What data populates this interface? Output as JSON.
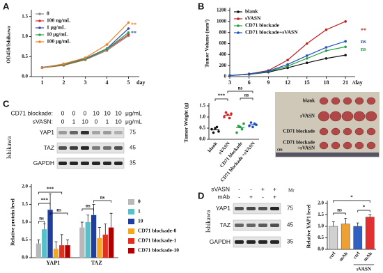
{
  "panel_labels": [
    "A",
    "B",
    "C",
    "D"
  ],
  "chart_data": [
    {
      "type": "line",
      "ylabel": "OD450/Ishikawa",
      "xlabel": "day",
      "x": [
        1,
        2,
        3,
        4,
        5
      ],
      "xlim": [
        0.5,
        5.5
      ],
      "xticks": [
        1,
        2,
        3,
        4,
        5
      ],
      "ylim": [
        0,
        1.6
      ],
      "yticks": [
        {
          "value": 0,
          "label": "0.0"
        },
        0.5,
        {
          "value": 1,
          "label": "1.0"
        },
        1.5
      ],
      "legend": "upper left",
      "series": [
        {
          "name": "0",
          "color": "#888888",
          "values": [
            0.22,
            0.28,
            0.42,
            0.65,
            1.02
          ]
        },
        {
          "name": "100 ng/mL",
          "color": "#d03030",
          "values": [
            0.22,
            0.29,
            0.43,
            0.68,
            1.05
          ]
        },
        {
          "name": "1 μg/mL",
          "color": "#3050b0",
          "values": [
            0.23,
            0.31,
            0.45,
            0.7,
            1.2
          ]
        },
        {
          "name": "10 μg/mL",
          "color": "#30a050",
          "values": [
            0.22,
            0.3,
            0.44,
            0.69,
            1.1
          ]
        },
        {
          "name": "100 μg/mL",
          "color": "#f08020",
          "values": [
            0.22,
            0.32,
            0.47,
            0.8,
            1.35
          ]
        }
      ],
      "annotations": [
        {
          "text": "**",
          "color": "#f08020"
        },
        {
          "text": "**",
          "color": "#3050b0"
        }
      ]
    },
    {
      "type": "line",
      "ylabel": "Tumor Volume (mm³)",
      "xlabel": "/day",
      "x": [
        3,
        6,
        9,
        12,
        15,
        18,
        21
      ],
      "xlim": [
        3,
        22.5
      ],
      "xticks": [
        3,
        6,
        9,
        12,
        15,
        18,
        21
      ],
      "ylim": [
        0,
        1200
      ],
      "yticks": [
        0,
        200,
        400,
        600,
        800,
        1000,
        1200
      ],
      "legend": "upper left",
      "series": [
        {
          "name": "blank",
          "color": "#111111",
          "values": [
            20,
            40,
            80,
            160,
            250,
            330,
            390
          ]
        },
        {
          "name": "sVASN",
          "color": "#c02020",
          "values": [
            20,
            50,
            110,
            300,
            600,
            850,
            1000
          ]
        },
        {
          "name": "CD71 blockade",
          "color": "#20a040",
          "values": [
            20,
            40,
            90,
            190,
            330,
            470,
            540
          ]
        },
        {
          "name": "CD71 blockade+sVASN",
          "color": "#2050c0",
          "values": [
            20,
            45,
            100,
            220,
            380,
            530,
            640
          ]
        }
      ],
      "annotations": [
        {
          "text": "**",
          "color": "#c02020"
        },
        {
          "text": "ns",
          "color": "#2050c0"
        },
        {
          "text": "ns",
          "color": "#20a040"
        }
      ]
    },
    {
      "type": "strip",
      "ylabel": "Tumor Weight (g)",
      "categories": [
        "blank",
        "sVASN",
        "CD71 blockade",
        "CD71 blockade +sVASN"
      ],
      "colors": [
        "#111111",
        "#d02020",
        "#20a040",
        "#2050c0"
      ],
      "values": [
        0.43,
        1.08,
        0.52,
        0.65
      ],
      "points": [
        [
          0.45,
          0.3,
          0.5,
          0.55,
          0.35
        ],
        [
          1.0,
          1.2,
          1.1,
          0.95,
          1.15
        ],
        [
          0.3,
          0.6,
          0.55,
          0.45,
          0.7
        ],
        [
          0.6,
          0.75,
          0.55,
          0.7,
          0.65
        ]
      ],
      "ylim": [
        0,
        1.5
      ],
      "yticks": [
        {
          "value": 0,
          "label": "0.0"
        },
        0.5,
        {
          "value": 1,
          "label": "1.0"
        },
        1.5
      ],
      "annotations": [
        {
          "text": "***"
        },
        {
          "text": "ns"
        },
        {
          "text": "ns"
        }
      ]
    },
    {
      "type": "bar",
      "ylabel": "Relative protein level",
      "categories": [
        "YAP1",
        "TAZ"
      ],
      "ylim": [
        0,
        2
      ],
      "yticks": [
        {
          "value": 0,
          "label": "0.0"
        },
        0.5,
        {
          "value": 1,
          "label": "1.0"
        },
        1.5,
        {
          "value": 2,
          "label": "2.0"
        }
      ],
      "legend": "right",
      "series": [
        {
          "name": "0",
          "color": "#b8b8b8",
          "values": [
            0.4,
            0.85
          ],
          "errors": [
            0.1,
            0.15
          ]
        },
        {
          "name": "1",
          "color": "#58c0c8",
          "values": [
            0.8,
            1.0
          ],
          "errors": [
            0.15,
            0.2
          ]
        },
        {
          "name": "10",
          "color": "#1f3fa0",
          "values": [
            1.35,
            1.2
          ],
          "errors": [
            0.45,
            0.3
          ]
        },
        {
          "name": "CD71 blockade-0",
          "color": "#f5a623",
          "values": [
            0.25,
            0.55
          ],
          "errors": [
            0.2,
            0.3
          ]
        },
        {
          "name": "CD71 blockade-1",
          "color": "#e03020",
          "values": [
            0.35,
            0.65
          ],
          "errors": [
            0.3,
            0.3
          ]
        },
        {
          "name": "CD71 blockade-10",
          "color": "#b00000",
          "values": [
            0.35,
            0.85
          ],
          "errors": [
            0.15,
            0.4
          ]
        }
      ],
      "annotations": [
        {
          "text": "ns"
        },
        {
          "text": "***"
        },
        {
          "text": "***"
        },
        {
          "text": "ns"
        },
        {
          "text": "ns"
        },
        {
          "text": "ns"
        }
      ]
    },
    {
      "type": "colbar",
      "ylabel": "Relative YAP1 level",
      "categories": [
        "ctrl",
        "mAb",
        "ctrl",
        "mAb"
      ],
      "group_label": "sVASN",
      "colors": [
        "#d0d0d0",
        "#f0a030",
        "#3060c0",
        "#e03030"
      ],
      "values": [
        1.0,
        1.1,
        1.0,
        1.4
      ],
      "errors": [
        0.2,
        0.25,
        0.15,
        0.1
      ],
      "ylim": [
        0,
        2
      ],
      "yticks": [
        {
          "value": 0,
          "label": "0.0"
        },
        0.5,
        {
          "value": 1,
          "label": "1.0"
        },
        1.5,
        {
          "value": 2,
          "label": "2.0"
        }
      ],
      "annotations": [
        {
          "text": "ns"
        },
        {
          "text": "*"
        },
        {
          "text": "*"
        }
      ]
    }
  ],
  "tumor_photo": {
    "rows": [
      [
        "blank"
      ],
      [
        "sVASN"
      ],
      [
        "CD71 blockade"
      ],
      [
        "CD71 blockade",
        "+sVASN"
      ]
    ],
    "scale": "cm"
  },
  "blot_c": {
    "cell_line": "Ishikawa",
    "header": [
      {
        "label": "CD71 blockade:",
        "values": [
          0,
          0,
          0,
          10,
          10,
          10
        ],
        "unit": "μg/mL"
      },
      {
        "label": "sVASN:",
        "values": [
          0,
          1,
          10,
          0,
          1,
          10
        ],
        "unit": "μg/mL"
      }
    ],
    "bands": [
      {
        "name": "YAP1",
        "mw": "75"
      },
      {
        "name": "TAZ",
        "mw": "45"
      },
      {
        "name": "GAPDH",
        "mw": "35"
      }
    ]
  },
  "blot_d": {
    "cell_line": "Ishikawa",
    "mr": "Mr",
    "header": [
      {
        "label": "sVASN",
        "values": [
          "-",
          "-",
          "+",
          "+"
        ]
      },
      {
        "label": "mAb",
        "values": [
          "-",
          "+",
          "-",
          "+"
        ]
      }
    ],
    "bands": [
      {
        "name": "YAP1",
        "mw": "75"
      },
      {
        "name": "TAZ",
        "mw": "45"
      },
      {
        "name": "GAPDH",
        "mw": "35"
      }
    ]
  }
}
